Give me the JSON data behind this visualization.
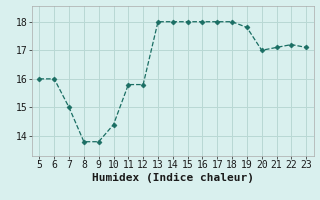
{
  "x": [
    5,
    6,
    7,
    8,
    9,
    10,
    11,
    12,
    13,
    14,
    15,
    16,
    17,
    18,
    19,
    20,
    21,
    22,
    23
  ],
  "y": [
    16.0,
    16.0,
    15.0,
    13.8,
    13.8,
    14.4,
    15.8,
    15.8,
    18.0,
    18.0,
    18.0,
    18.0,
    18.0,
    18.0,
    17.8,
    17.0,
    17.1,
    17.2,
    17.1
  ],
  "line_color": "#1a6e63",
  "marker": "D",
  "marker_size": 2.5,
  "bg_color": "#d9f0ee",
  "grid_color": "#b8d8d4",
  "xlabel": "Humidex (Indice chaleur)",
  "xlim": [
    4.5,
    23.5
  ],
  "ylim": [
    13.3,
    18.55
  ],
  "xticks": [
    5,
    6,
    7,
    8,
    9,
    10,
    11,
    12,
    13,
    14,
    15,
    16,
    17,
    18,
    19,
    20,
    21,
    22,
    23
  ],
  "yticks": [
    14,
    15,
    16,
    17,
    18
  ],
  "tick_font_size": 7,
  "label_font_size": 8
}
